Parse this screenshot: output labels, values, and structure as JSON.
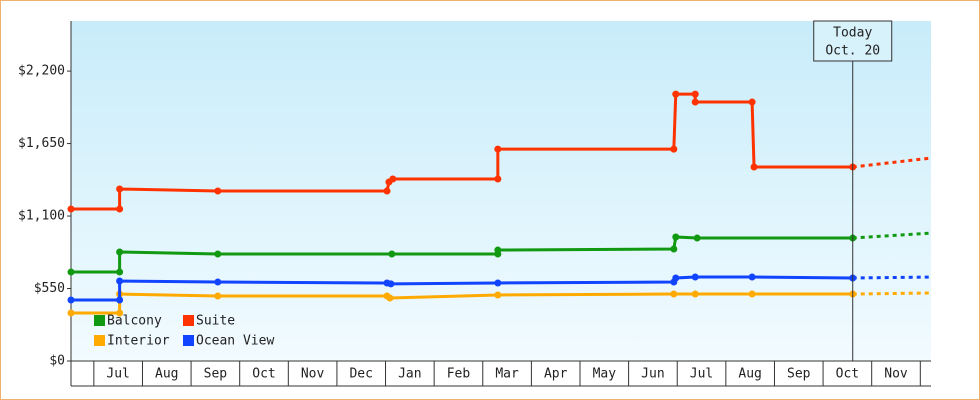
{
  "chart_data": {
    "type": "line",
    "step": true,
    "xlim": [
      0.53,
      18.22
    ],
    "ylim": [
      0,
      2580
    ],
    "yticks": [
      {
        "value": 0,
        "label": "$0"
      },
      {
        "value": 550,
        "label": "$550"
      },
      {
        "value": 1100,
        "label": "$1,100"
      },
      {
        "value": 1650,
        "label": "$1,650"
      },
      {
        "value": 2200,
        "label": "$2,200"
      }
    ],
    "xticks": [
      {
        "value": 1,
        "label": "Jul"
      },
      {
        "value": 2,
        "label": "Aug"
      },
      {
        "value": 3,
        "label": "Sep"
      },
      {
        "value": 4,
        "label": "Oct"
      },
      {
        "value": 5,
        "label": "Nov"
      },
      {
        "value": 6,
        "label": "Dec"
      },
      {
        "value": 7,
        "label": "Jan"
      },
      {
        "value": 8,
        "label": "Feb"
      },
      {
        "value": 9,
        "label": "Mar"
      },
      {
        "value": 10,
        "label": "Apr"
      },
      {
        "value": 11,
        "label": "May"
      },
      {
        "value": 12,
        "label": "Jun"
      },
      {
        "value": 13,
        "label": "Jul"
      },
      {
        "value": 14,
        "label": "Aug"
      },
      {
        "value": 15,
        "label": "Sep"
      },
      {
        "value": 16,
        "label": "Oct"
      },
      {
        "value": 17,
        "label": "Nov"
      },
      {
        "value": 18
      }
    ],
    "today": {
      "x": 16.61,
      "label": [
        "Today",
        "Oct. 20"
      ]
    },
    "legend": "bottom-left",
    "series": [
      {
        "name": "Balcony",
        "color": "#119911",
        "x": [
          0.53,
          1.53,
          1.53,
          3.55,
          7.13,
          9.31,
          9.31,
          12.93,
          12.97,
          13.41,
          16.61,
          18.22
        ],
        "values": [
          675,
          675,
          827,
          812,
          812,
          812,
          842,
          850,
          941,
          933,
          933,
          971
        ]
      },
      {
        "name": "Suite",
        "color": "#ff3300",
        "x": [
          0.53,
          1.53,
          1.53,
          3.55,
          7.03,
          7.07,
          7.15,
          9.31,
          9.31,
          12.93,
          12.97,
          13.37,
          13.37,
          14.54,
          14.58,
          16.61,
          18.22
        ],
        "values": [
          1153,
          1153,
          1305,
          1290,
          1290,
          1358,
          1381,
          1381,
          1608,
          1608,
          2025,
          2025,
          1965,
          1965,
          1472,
          1472,
          1540
        ]
      },
      {
        "name": "Interior",
        "color": "#ffaa00",
        "x": [
          0.53,
          1.53,
          1.53,
          3.55,
          7.03,
          7.09,
          9.31,
          12.93,
          13.37,
          14.54,
          16.61,
          18.22
        ],
        "values": [
          364,
          364,
          508,
          493,
          493,
          478,
          501,
          508,
          508,
          508,
          508,
          516
        ]
      },
      {
        "name": "Ocean View",
        "color": "#1144ff",
        "x": [
          0.53,
          1.53,
          1.53,
          3.55,
          7.03,
          7.11,
          9.31,
          12.93,
          12.97,
          13.37,
          14.54,
          16.61,
          18.22
        ],
        "values": [
          463,
          463,
          607,
          599,
          592,
          585,
          592,
          599,
          630,
          637,
          637,
          630,
          637
        ]
      }
    ]
  }
}
